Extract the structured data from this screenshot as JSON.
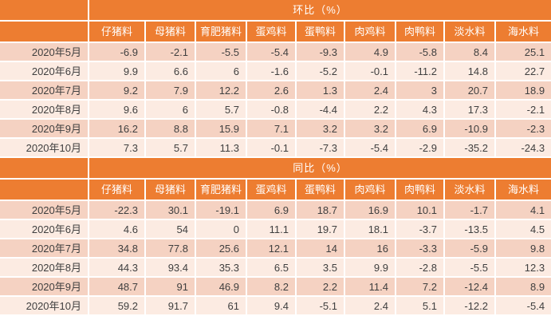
{
  "colors": {
    "header_bg": "#ED7D31",
    "header_text": "#FFFFFF",
    "row_dark": "#F5D2C2",
    "row_light": "#FCEBE2",
    "cell_text": "#3F3F3F",
    "grid": "#FFFFFF"
  },
  "chart_data": [
    {
      "type": "table",
      "title": "环比（%）",
      "columns": [
        "仔猪料",
        "母猪料",
        "育肥猪料",
        "蛋鸡料",
        "蛋鸭料",
        "肉鸡料",
        "肉鸭料",
        "淡水料",
        "海水料"
      ],
      "rows": [
        {
          "label": "2020年5月",
          "values": [
            -6.9,
            -2.1,
            -5.5,
            -5.4,
            -9.3,
            4.9,
            -5.8,
            8.4,
            25.1
          ]
        },
        {
          "label": "2020年6月",
          "values": [
            9.9,
            6.6,
            6,
            -1.6,
            -5.2,
            -0.1,
            -11.2,
            14.8,
            22.7
          ]
        },
        {
          "label": "2020年7月",
          "values": [
            9.2,
            7.9,
            12.2,
            2.6,
            1.3,
            2.4,
            3,
            20.7,
            18.9
          ]
        },
        {
          "label": "2020年8月",
          "values": [
            9.6,
            6,
            5.7,
            -0.8,
            -4.4,
            2.2,
            4.3,
            17.3,
            -2.1
          ]
        },
        {
          "label": "2020年9月",
          "values": [
            16.2,
            8.8,
            15.9,
            7.1,
            3.2,
            3.2,
            6.9,
            -10.9,
            -2.3
          ]
        },
        {
          "label": "2020年10月",
          "values": [
            7.3,
            5.7,
            11.3,
            -0.1,
            -7.3,
            -5.4,
            -2.9,
            -35.2,
            -24.3
          ]
        }
      ]
    },
    {
      "type": "table",
      "title": "同比（%）",
      "columns": [
        "仔猪料",
        "母猪料",
        "育肥猪料",
        "蛋鸡料",
        "蛋鸭料",
        "肉鸡料",
        "肉鸭料",
        "淡水料",
        "海水料"
      ],
      "rows": [
        {
          "label": "2020年5月",
          "values": [
            -22.3,
            30.1,
            -19.1,
            6.9,
            18.7,
            16.9,
            10.1,
            -1.7,
            4.1
          ]
        },
        {
          "label": "2020年6月",
          "values": [
            4.6,
            54,
            0,
            11.1,
            19.7,
            18.1,
            -3.7,
            -13.5,
            4.5
          ]
        },
        {
          "label": "2020年7月",
          "values": [
            34.8,
            77.8,
            25.6,
            12.1,
            14,
            16,
            -3.3,
            -5.9,
            9.8
          ]
        },
        {
          "label": "2020年8月",
          "values": [
            44.3,
            93.4,
            35.3,
            6.5,
            3.5,
            9.9,
            -2.8,
            -5.5,
            12.3
          ]
        },
        {
          "label": "2020年9月",
          "values": [
            48.7,
            91,
            46.9,
            8.2,
            2.2,
            11.4,
            7.2,
            -12.4,
            8.9
          ]
        },
        {
          "label": "2020年10月",
          "values": [
            59.2,
            91.7,
            61,
            9.4,
            -5.1,
            2.4,
            5.1,
            -12.2,
            -5.4
          ]
        }
      ]
    }
  ]
}
